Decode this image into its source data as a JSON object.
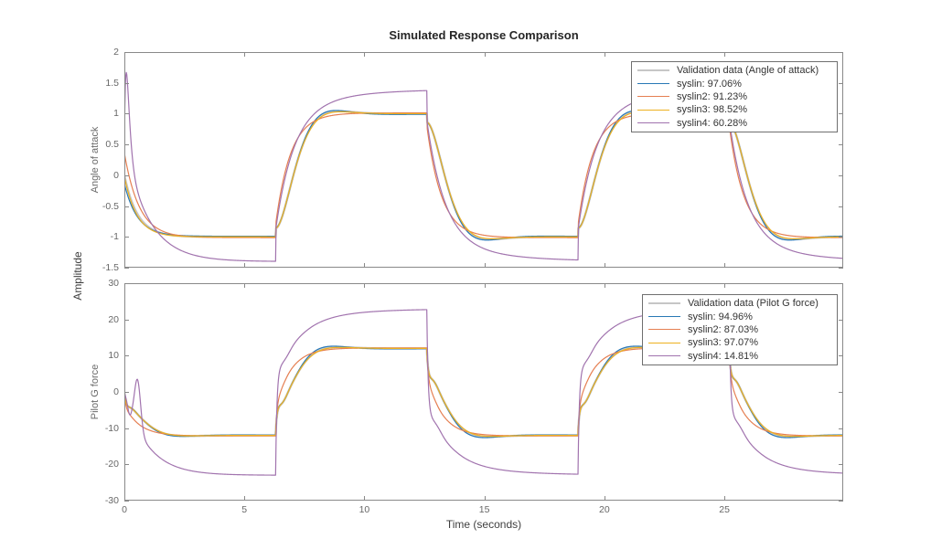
{
  "figure": {
    "title": "Simulated Response Comparison",
    "background": "#ffffff"
  },
  "axes": {
    "xlabel": "Time (seconds)",
    "shared_ylabel": "Amplitude",
    "xlim": [
      0,
      29.95
    ],
    "x_ticks": {
      "values": [
        0,
        5,
        10,
        15,
        20,
        25
      ],
      "labels": [
        "0",
        "5",
        "10",
        "15",
        "20",
        "25"
      ]
    },
    "axis_color": "#898989",
    "tick_label_color": "#676767"
  },
  "chart_data": [
    {
      "type": "line",
      "subplot": "top",
      "title": "Simulated Response Comparison",
      "xlabel": "Time (seconds)",
      "ylabel": "Angle of attack",
      "ylim": [
        -1.5,
        2
      ],
      "yticks": {
        "values": [
          2,
          1.5,
          1,
          0.5,
          0,
          -0.5,
          -1,
          -1.5
        ],
        "labels": [
          "2",
          "1.5",
          "1",
          "0.5",
          "0",
          "-0.5",
          "-1",
          "-1.5"
        ]
      },
      "grid": false,
      "input": {
        "type": "square-wave",
        "switch_times": [
          6.3,
          12.6,
          18.9,
          25.2
        ],
        "segment_targets": [
          -1,
          1,
          -1,
          1,
          -1
        ]
      },
      "legend": {
        "position": "northeast",
        "entries": [
          {
            "label": "Validation data (Angle of attack)",
            "color": "#c6c6c6",
            "weight": 2.6
          },
          {
            "label": "syslin: 97.06%",
            "color": "#2878b5",
            "weight": 1.6
          },
          {
            "label": "syslin2: 91.23%",
            "color": "#e57f52",
            "weight": 1.6
          },
          {
            "label": "syslin3: 98.52%",
            "color": "#edb120",
            "weight": 1.6
          },
          {
            "label": "syslin4: 60.28%",
            "color": "#a173ae",
            "weight": 1.6
          }
        ]
      },
      "series": [
        {
          "key": "validation",
          "name": "Validation data (Angle of attack)",
          "fit_percent": null,
          "color": "#c6c6c6",
          "width": 2.4,
          "gain": 1.0,
          "model": "so",
          "params": {
            "sigma": 1.45,
            "wd": 1.19,
            "j": 0.07,
            "y0": 0.0,
            "tau0": 0.55
          }
        },
        {
          "key": "syslin",
          "name": "syslin",
          "fit_percent": 97.06,
          "color": "#2878b5",
          "width": 1.2,
          "gain": 0.99,
          "model": "so",
          "params": {
            "sigma": 1.35,
            "wd": 1.25,
            "j": 0.07,
            "y0": -0.14,
            "tau0": 0.55
          }
        },
        {
          "key": "syslin2",
          "name": "syslin2",
          "fit_percent": 91.23,
          "color": "#e57f52",
          "width": 1.2,
          "gain": 1.012,
          "model": "fo",
          "params": {
            "tau": 0.62,
            "j": 0.1,
            "y0": 0.36,
            "tau0": 0.62
          }
        },
        {
          "key": "syslin3",
          "name": "syslin3",
          "fit_percent": 98.52,
          "color": "#edb120",
          "width": 1.2,
          "gain": 1.0,
          "model": "so",
          "params": {
            "sigma": 1.5,
            "wd": 1.15,
            "j": 0.07,
            "y0": -0.02,
            "tau0": 0.52
          }
        },
        {
          "key": "syslin4",
          "name": "syslin4",
          "fit_percent": 60.28,
          "color": "#a173ae",
          "width": 1.2,
          "gain": 1.4,
          "model": "slow",
          "params": {
            "m": 0.85,
            "tau1": 0.75,
            "tau2": 2.4,
            "j": 0.18,
            "y0": 0.5,
            "tau0": 1.0,
            "bump": {
              "B": 40,
              "tau": 0.09
            }
          }
        }
      ]
    },
    {
      "type": "line",
      "subplot": "bottom",
      "ylabel": "Pilot G force",
      "ylim": [
        -30,
        30
      ],
      "yticks": {
        "values": [
          30,
          20,
          10,
          0,
          -10,
          -20,
          -30
        ],
        "labels": [
          "30",
          "20",
          "10",
          "0",
          "-10",
          "-20",
          "-30"
        ]
      },
      "grid": false,
      "input": {
        "type": "square-wave",
        "switch_times": [
          6.3,
          12.6,
          18.9,
          25.2
        ],
        "segment_targets": [
          -12,
          12,
          -12,
          12,
          -12
        ]
      },
      "legend": {
        "position": "northeast",
        "entries": [
          {
            "label": "Validation data (Pilot G force)",
            "color": "#c6c6c6",
            "weight": 2.6
          },
          {
            "label": "syslin: 94.96%",
            "color": "#2878b5",
            "weight": 1.6
          },
          {
            "label": "syslin2: 87.03%",
            "color": "#e57f52",
            "weight": 1.6
          },
          {
            "label": "syslin3: 97.07%",
            "color": "#edb120",
            "weight": 1.6
          },
          {
            "label": "syslin4: 14.81%",
            "color": "#a173ae",
            "weight": 1.6
          }
        ]
      },
      "series": [
        {
          "key": "validation",
          "name": "Validation data (Pilot G force)",
          "fit_percent": null,
          "color": "#c6c6c6",
          "width": 2.4,
          "gain": 12,
          "model": "so",
          "params": {
            "sigma": 1.45,
            "wd": 1.19,
            "j": 0.3,
            "wig": {
              "a": 0.04,
              "tau": 0.22,
              "w": 11
            }
          }
        },
        {
          "key": "syslin",
          "name": "syslin",
          "fit_percent": 94.96,
          "color": "#2878b5",
          "width": 1.2,
          "gain": 11.9,
          "model": "so",
          "params": {
            "sigma": 1.3,
            "wd": 1.3,
            "j": 0.3,
            "wig": {
              "a": 0.05,
              "tau": 0.22,
              "w": 11
            }
          }
        },
        {
          "key": "syslin2",
          "name": "syslin2",
          "fit_percent": 87.03,
          "color": "#e57f52",
          "width": 1.2,
          "gain": 12.15,
          "model": "fo",
          "params": {
            "tau": 0.62,
            "j": 0.3,
            "wig": {
              "a": 0.02,
              "tau": 0.2,
              "w": 11
            }
          }
        },
        {
          "key": "syslin3",
          "name": "syslin3",
          "fit_percent": 97.07,
          "color": "#edb120",
          "width": 1.2,
          "gain": 12,
          "model": "so",
          "params": {
            "sigma": 1.5,
            "wd": 1.15,
            "j": 0.3,
            "wig": {
              "a": 0.04,
              "tau": 0.22,
              "w": 11
            }
          }
        },
        {
          "key": "syslin4",
          "name": "syslin4",
          "fit_percent": 14.81,
          "color": "#a173ae",
          "width": 1.2,
          "gain": 23,
          "model": "slow",
          "params": {
            "m": 0.85,
            "tau1": 0.9,
            "tau2": 2.6,
            "j": 0.55,
            "wig": {
              "a": 0.05,
              "tau": 0.25,
              "w": 8
            },
            "seg0": "custom",
            "tau0": 0.95,
            "bumps": [
              [
                13.5,
                0.55,
                0.18
              ],
              [
                -2,
                0.22,
                0.1
              ]
            ]
          }
        }
      ]
    }
  ]
}
